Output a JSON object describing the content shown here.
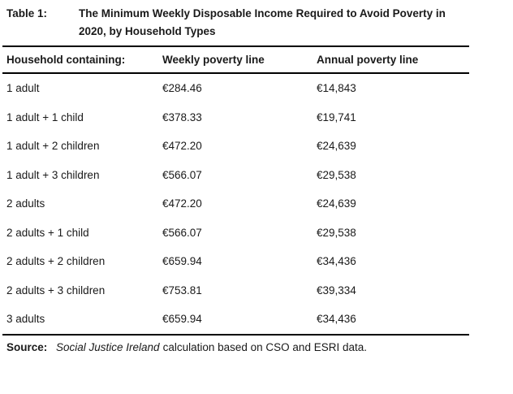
{
  "title": {
    "label": "Table 1:",
    "line1": "The Minimum Weekly Disposable Income Required to Avoid Poverty in",
    "line2": "2020, by Household Types"
  },
  "table": {
    "columns": [
      "Household containing:",
      "Weekly poverty line",
      "Annual poverty line"
    ],
    "rows": [
      {
        "household": "1 adult",
        "weekly": "€284.46",
        "annual": "€14,843"
      },
      {
        "household": "1 adult + 1 child",
        "weekly": "€378.33",
        "annual": "€19,741"
      },
      {
        "household": "1 adult + 2 children",
        "weekly": "€472.20",
        "annual": "€24,639"
      },
      {
        "household": "1 adult + 3 children",
        "weekly": "€566.07",
        "annual": "€29,538"
      },
      {
        "household": "2 adults",
        "weekly": "€472.20",
        "annual": "€24,639"
      },
      {
        "household": "2 adults + 1 child",
        "weekly": "€566.07",
        "annual": "€29,538"
      },
      {
        "household": "2 adults + 2 children",
        "weekly": "€659.94",
        "annual": "€34,436"
      },
      {
        "household": "2 adults + 3 children",
        "weekly": "€753.81",
        "annual": "€39,334"
      },
      {
        "household": "3 adults",
        "weekly": "€659.94",
        "annual": "€34,436"
      }
    ]
  },
  "source": {
    "label": "Source:",
    "org": "Social Justice Ireland",
    "text": "calculation based on CSO and ESRI data."
  },
  "colors": {
    "text": "#1a1a1a",
    "rule": "#000000",
    "background": "#ffffff"
  }
}
